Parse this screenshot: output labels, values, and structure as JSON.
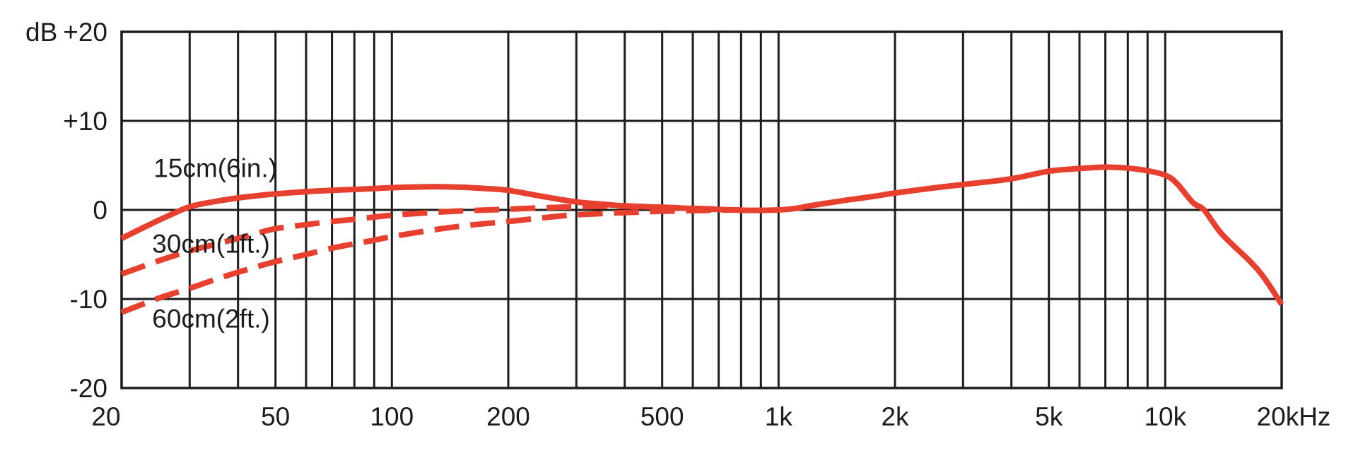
{
  "chart_data": {
    "type": "line",
    "title": "",
    "x_axis": {
      "scale": "log",
      "unit": "Hz",
      "min": 20,
      "max": 20000,
      "tick_labels": [
        {
          "f": 20,
          "label": "20"
        },
        {
          "f": 50,
          "label": "50"
        },
        {
          "f": 100,
          "label": "100"
        },
        {
          "f": 200,
          "label": "200"
        },
        {
          "f": 500,
          "label": "500"
        },
        {
          "f": 1000,
          "label": "1k"
        },
        {
          "f": 2000,
          "label": "2k"
        },
        {
          "f": 5000,
          "label": "5k"
        },
        {
          "f": 10000,
          "label": "10k"
        },
        {
          "f": 20000,
          "label": "20kHz"
        }
      ],
      "gridlines": [
        20,
        30,
        40,
        50,
        60,
        70,
        80,
        90,
        100,
        200,
        300,
        400,
        500,
        600,
        700,
        800,
        900,
        1000,
        2000,
        3000,
        4000,
        5000,
        6000,
        7000,
        8000,
        9000,
        10000,
        20000
      ]
    },
    "y_axis": {
      "unit": "dB",
      "axis_title": "dB",
      "min": -20,
      "max": 20,
      "tick_labels": [
        {
          "db": 20,
          "label": "+20"
        },
        {
          "db": 10,
          "label": "+10"
        },
        {
          "db": 0,
          "label": "0"
        },
        {
          "db": -10,
          "label": "-10"
        },
        {
          "db": -20,
          "label": "-20"
        }
      ],
      "gridlines": [
        20,
        10,
        0,
        -10,
        -20
      ]
    },
    "grid_on": true,
    "legend_position": "inline-labels",
    "colors": {
      "curve": "#e8402e",
      "grid": "#1c1c1c",
      "text": "#1c1c1c",
      "background": "#ffffff"
    },
    "series": [
      {
        "name": "15cm",
        "label": "15cm(6in.)",
        "style": "solid",
        "label_anchor": {
          "f": 24.2,
          "db": 3.7
        },
        "points": [
          [
            20,
            -3.2
          ],
          [
            23,
            -1.9
          ],
          [
            26,
            -0.8
          ],
          [
            30,
            0.35
          ],
          [
            35,
            0.95
          ],
          [
            40,
            1.35
          ],
          [
            45,
            1.6
          ],
          [
            50,
            1.8
          ],
          [
            60,
            2.05
          ],
          [
            70,
            2.2
          ],
          [
            80,
            2.3
          ],
          [
            90,
            2.4
          ],
          [
            100,
            2.5
          ],
          [
            125,
            2.6
          ],
          [
            150,
            2.55
          ],
          [
            175,
            2.4
          ],
          [
            200,
            2.2
          ],
          [
            250,
            1.45
          ],
          [
            300,
            0.9
          ],
          [
            350,
            0.65
          ],
          [
            400,
            0.45
          ],
          [
            500,
            0.3
          ],
          [
            600,
            0.15
          ],
          [
            700,
            0.05
          ],
          [
            850,
            -0.05
          ],
          [
            1000,
            0
          ],
          [
            1100,
            0.15
          ],
          [
            1200,
            0.45
          ],
          [
            1350,
            0.8
          ],
          [
            1500,
            1.1
          ],
          [
            1750,
            1.5
          ],
          [
            2000,
            1.9
          ],
          [
            2500,
            2.45
          ],
          [
            3000,
            2.85
          ],
          [
            4000,
            3.5
          ],
          [
            5000,
            4.35
          ],
          [
            6000,
            4.65
          ],
          [
            7000,
            4.8
          ],
          [
            8000,
            4.7
          ],
          [
            9000,
            4.4
          ],
          [
            10000,
            3.9
          ],
          [
            10700,
            3.0
          ],
          [
            11800,
            0.8
          ],
          [
            12600,
            0
          ],
          [
            14000,
            -2.7
          ],
          [
            16500,
            -5.7
          ],
          [
            18000,
            -7.6
          ],
          [
            20000,
            -10.6
          ]
        ]
      },
      {
        "name": "30cm",
        "label": "30cm(1ft.)",
        "style": "dashed",
        "label_anchor": {
          "f": 24.0,
          "db": -4.8
        },
        "points": [
          [
            20,
            -7.2
          ],
          [
            25,
            -5.7
          ],
          [
            30,
            -4.6
          ],
          [
            35,
            -3.85
          ],
          [
            40,
            -3.2
          ],
          [
            45,
            -2.6
          ],
          [
            50,
            -2.1
          ],
          [
            60,
            -1.65
          ],
          [
            70,
            -1.3
          ],
          [
            80,
            -1.05
          ],
          [
            90,
            -0.8
          ],
          [
            100,
            -0.6
          ],
          [
            125,
            -0.3
          ],
          [
            150,
            -0.12
          ],
          [
            200,
            0.08
          ],
          [
            250,
            0.25
          ],
          [
            300,
            0.35
          ],
          [
            400,
            0.42
          ],
          [
            500,
            0.3
          ],
          [
            600,
            0.18
          ],
          [
            700,
            0.08
          ]
        ]
      },
      {
        "name": "60cm",
        "label": "60cm(2ft.)",
        "style": "dashed",
        "label_anchor": {
          "f": 24.0,
          "db": -13.2
        },
        "points": [
          [
            20,
            -11.5
          ],
          [
            25,
            -9.9
          ],
          [
            30,
            -8.8
          ],
          [
            35,
            -7.8
          ],
          [
            40,
            -7.0
          ],
          [
            45,
            -6.35
          ],
          [
            50,
            -5.8
          ],
          [
            60,
            -5.0
          ],
          [
            70,
            -4.3
          ],
          [
            80,
            -3.8
          ],
          [
            90,
            -3.4
          ],
          [
            100,
            -3.0
          ],
          [
            130,
            -2.2
          ],
          [
            160,
            -1.7
          ],
          [
            200,
            -1.3
          ],
          [
            250,
            -0.85
          ],
          [
            300,
            -0.55
          ],
          [
            400,
            -0.3
          ],
          [
            500,
            -0.15
          ],
          [
            650,
            -0.05
          ],
          [
            800,
            0
          ]
        ]
      }
    ]
  }
}
